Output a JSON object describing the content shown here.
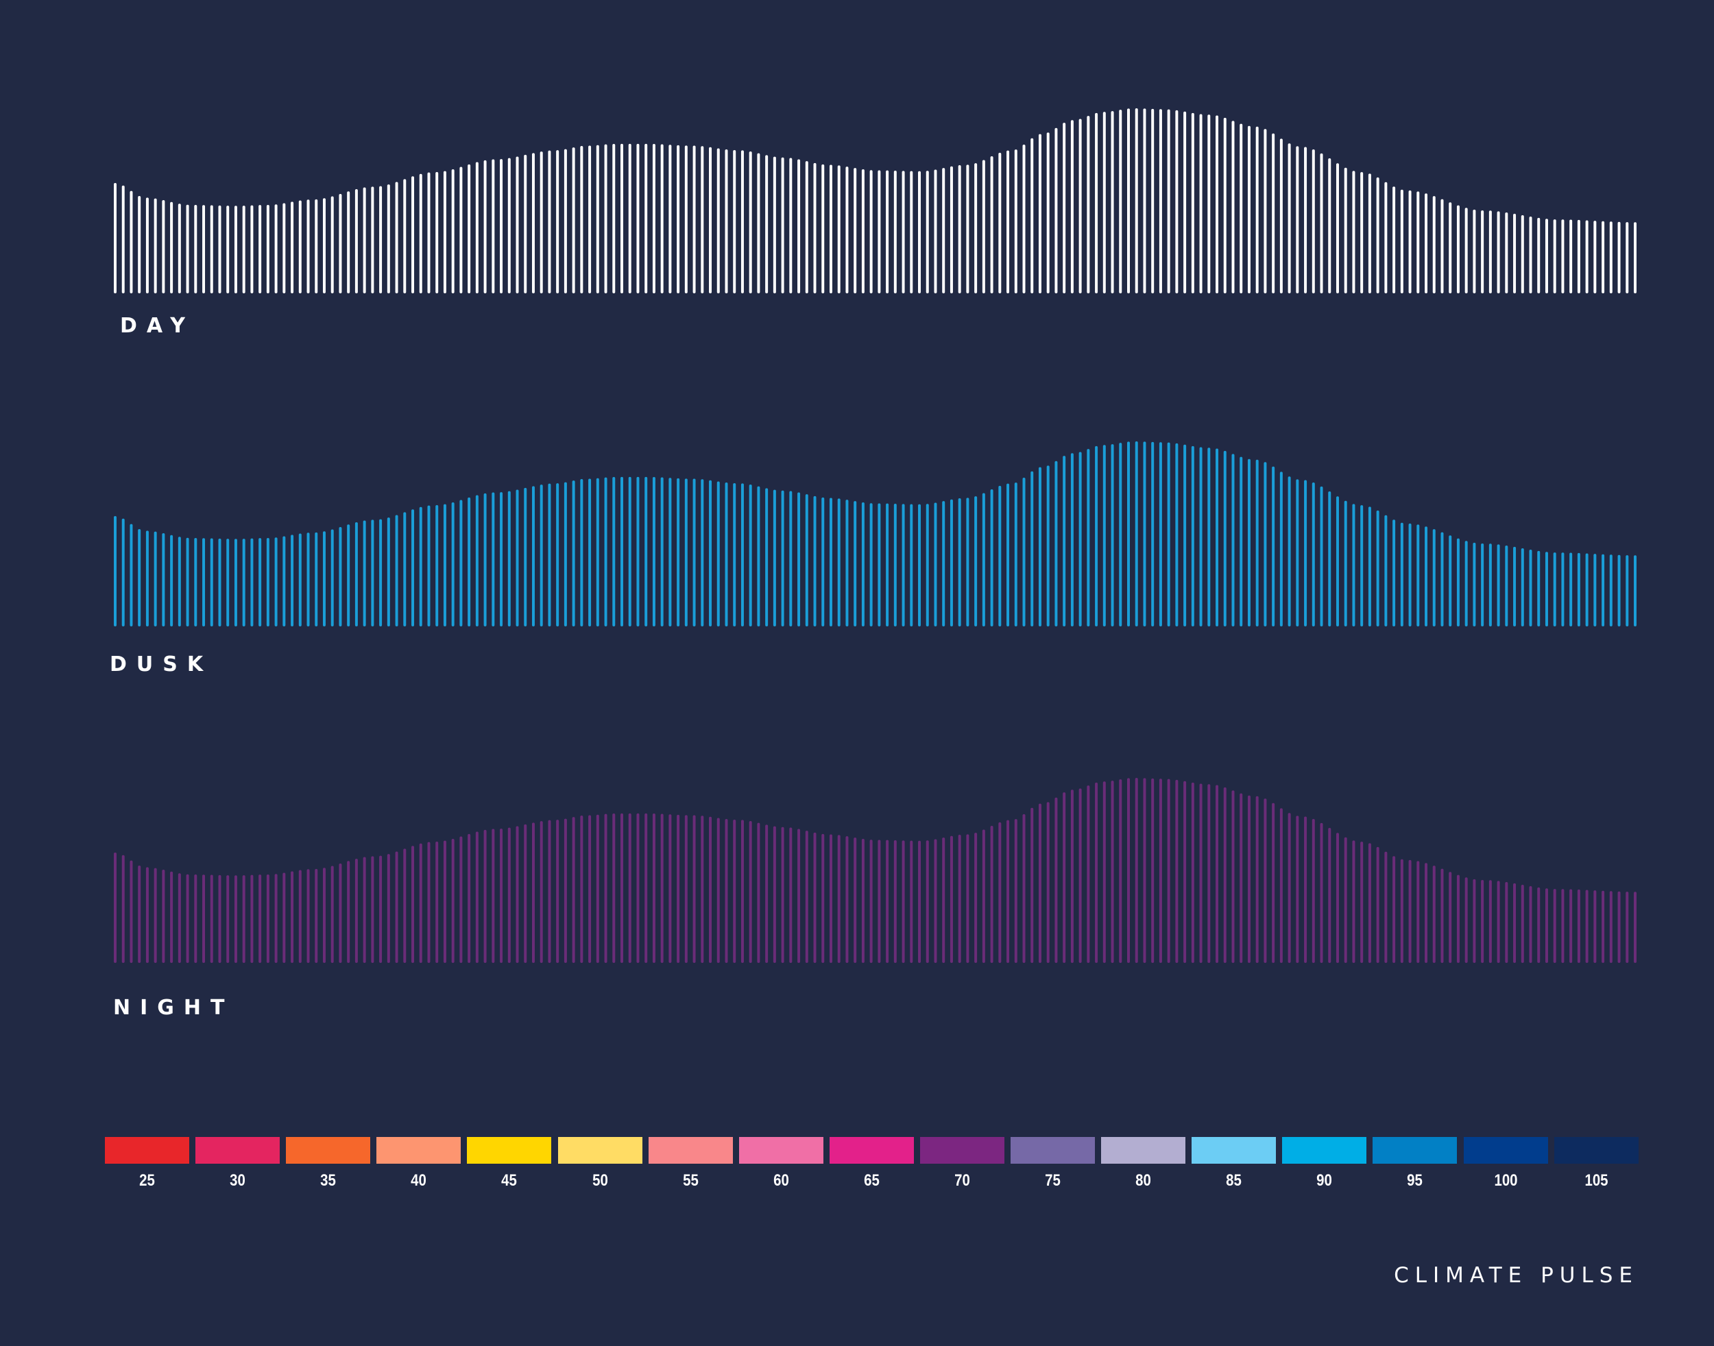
{
  "chart_data": {
    "type": "bar",
    "series": [
      {
        "name": "DAY",
        "color": "#ffffff"
      },
      {
        "name": "DUSK",
        "color": "#1a9ed8"
      },
      {
        "name": "NIGHT",
        "color": "#6a2c78"
      }
    ],
    "profile": {
      "x": [
        0,
        0.02,
        0.05,
        0.08,
        0.1,
        0.13,
        0.17,
        0.21,
        0.25,
        0.29,
        0.31,
        0.33,
        0.35,
        0.38,
        0.41,
        0.44,
        0.47,
        0.5,
        0.53,
        0.56,
        0.59,
        0.61,
        0.63,
        0.65,
        0.67,
        0.69,
        0.72,
        0.75,
        0.78,
        0.82,
        0.85,
        0.9,
        0.95,
        1.0
      ],
      "values": [
        0.59,
        0.51,
        0.47,
        0.465,
        0.47,
        0.5,
        0.57,
        0.65,
        0.72,
        0.77,
        0.795,
        0.805,
        0.805,
        0.795,
        0.77,
        0.73,
        0.69,
        0.66,
        0.655,
        0.69,
        0.77,
        0.86,
        0.935,
        0.98,
        1.0,
        0.995,
        0.965,
        0.9,
        0.79,
        0.65,
        0.55,
        0.44,
        0.39,
        0.375
      ]
    },
    "legend": {
      "labels": [
        "25",
        "30",
        "35",
        "40",
        "45",
        "50",
        "55",
        "60",
        "65",
        "70",
        "75",
        "80",
        "85",
        "90",
        "95",
        "100",
        "105"
      ],
      "colors": [
        "#e8262a",
        "#e42560",
        "#f6672b",
        "#fd9570",
        "#ffd600",
        "#ffdc64",
        "#f9878a",
        "#f06fa6",
        "#e3218a",
        "#7c2681",
        "#7669a7",
        "#b3aed1",
        "#6ccdf4",
        "#00aee6",
        "#0280c5",
        "#013d8d",
        "#0d2b5f"
      ]
    }
  },
  "labels": {
    "day": "DAY",
    "dusk": "DUSK",
    "night": "NIGHT"
  },
  "brand": "CLIMATE PULSE"
}
